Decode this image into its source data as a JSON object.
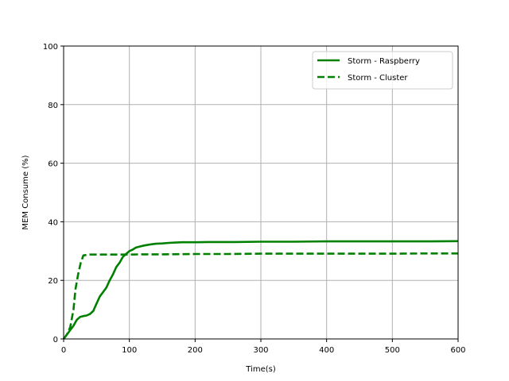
{
  "chart_data": {
    "type": "line",
    "xlabel": "Time(s)",
    "ylabel": "MEM Consume (%)",
    "xlim": [
      0,
      600
    ],
    "ylim": [
      0,
      100
    ],
    "xticks": [
      "0",
      "100",
      "200",
      "300",
      "400",
      "500",
      "600"
    ],
    "yticks": [
      "0",
      "20",
      "40",
      "60",
      "80",
      "100"
    ],
    "grid": true,
    "legend_position": "top-right",
    "color": "#008000",
    "series": [
      {
        "name": "Storm - Raspberry",
        "style": "solid",
        "x": [
          0,
          5,
          10,
          15,
          20,
          25,
          30,
          35,
          40,
          45,
          50,
          55,
          60,
          65,
          70,
          75,
          80,
          85,
          90,
          95,
          100,
          105,
          110,
          120,
          130,
          140,
          150,
          160,
          170,
          180,
          200,
          220,
          260,
          300,
          350,
          400,
          450,
          500,
          560,
          600
        ],
        "y": [
          0,
          1.5,
          3,
          4.5,
          6.5,
          7.5,
          7.8,
          8,
          8.5,
          9.5,
          12,
          14.5,
          16,
          17.5,
          20,
          22,
          24.5,
          26,
          28,
          29,
          30,
          30.5,
          31.2,
          31.8,
          32.2,
          32.5,
          32.6,
          32.8,
          32.9,
          33,
          33,
          33.1,
          33.1,
          33.2,
          33.2,
          33.3,
          33.3,
          33.3,
          33.3,
          33.4
        ]
      },
      {
        "name": "Storm - Cluster",
        "style": "dashed",
        "x": [
          0,
          5,
          10,
          15,
          18,
          22,
          26,
          30,
          35,
          40,
          50,
          60,
          80,
          100,
          120,
          150,
          200,
          250,
          300,
          350,
          400,
          450,
          500,
          550,
          600
        ],
        "y": [
          0,
          1.5,
          4,
          10,
          17,
          22,
          26,
          28.5,
          28.7,
          28.8,
          28.8,
          28.8,
          28.8,
          28.8,
          28.9,
          28.9,
          29,
          29,
          29.1,
          29.1,
          29.1,
          29.1,
          29.1,
          29.2,
          29.2
        ]
      }
    ]
  }
}
